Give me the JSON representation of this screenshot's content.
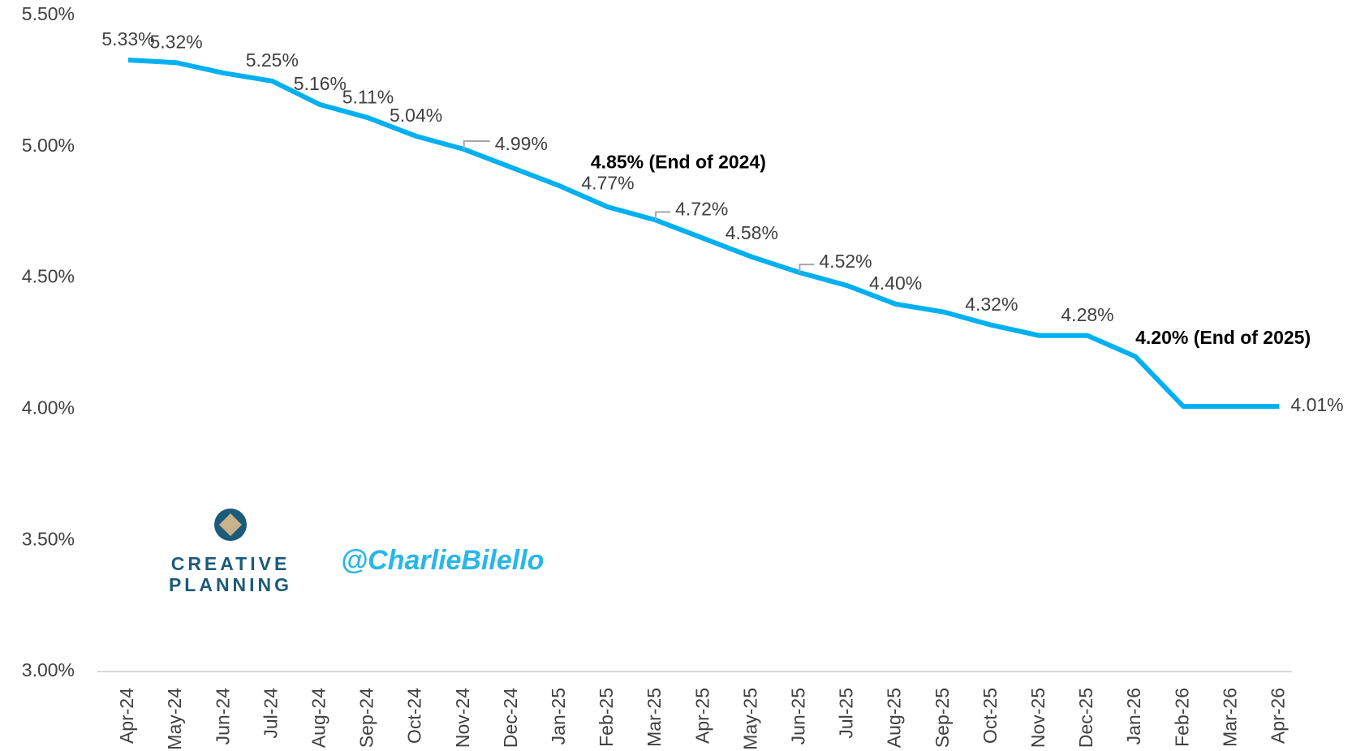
{
  "chart_data": {
    "type": "line",
    "categories": [
      "Apr-24",
      "May-24",
      "Jun-24",
      "Jul-24",
      "Aug-24",
      "Sep-24",
      "Oct-24",
      "Nov-24",
      "Dec-24",
      "Jan-25",
      "Feb-25",
      "Mar-25",
      "Apr-25",
      "May-25",
      "Jun-25",
      "Jul-25",
      "Aug-25",
      "Sep-25",
      "Oct-25",
      "Nov-25",
      "Dec-25",
      "Jan-26",
      "Feb-26",
      "Mar-26",
      "Apr-26"
    ],
    "series": [
      {
        "color": "#00b0f0",
        "values": [
          5.33,
          5.32,
          5.28,
          5.25,
          5.16,
          5.11,
          5.04,
          4.99,
          4.92,
          4.85,
          4.77,
          4.72,
          4.65,
          4.58,
          4.52,
          4.47,
          4.4,
          4.37,
          4.32,
          4.28,
          4.28,
          4.2,
          4.01,
          4.01,
          4.01
        ],
        "value_labels": [
          "5.33%",
          "5.32%",
          null,
          "5.25%",
          "5.16%",
          "5.11%",
          "5.04%",
          "4.99%",
          null,
          "4.85% (End of 2024)",
          "4.77%",
          "4.72%",
          null,
          "4.58%",
          "4.52%",
          null,
          "4.40%",
          null,
          "4.32%",
          null,
          "4.28%",
          "4.20% (End of 2025)",
          null,
          null,
          "4.01%"
        ]
      }
    ],
    "ylim": [
      3.0,
      5.5
    ],
    "yticks": [
      {
        "value": 3.0,
        "label": "3.00%"
      },
      {
        "value": 3.5,
        "label": "3.50%"
      },
      {
        "value": 4.0,
        "label": "4.00%"
      },
      {
        "value": 4.5,
        "label": "4.50%"
      },
      {
        "value": 5.0,
        "label": "5.00%"
      },
      {
        "value": 5.5,
        "label": "5.50%"
      }
    ],
    "grid": false,
    "watermark": {
      "brand_line1": "CREATIVE",
      "brand_line2": "PLANNING",
      "handle": "@CharlieBilello"
    }
  }
}
